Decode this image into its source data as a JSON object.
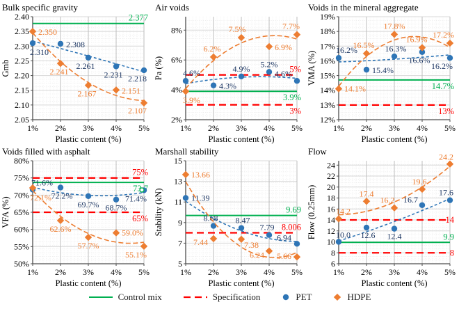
{
  "colors": {
    "control_mix": "#00B050",
    "specification": "#FF0000",
    "pet": "#2E75B6",
    "pet_label": "#1F3864",
    "hdpe": "#ED7D31",
    "axis": "#4D4D4D",
    "grid_major_h": "#D8D8D8",
    "grid_major_v": "#BDBDBD",
    "grid_minor": "#E4E4E4",
    "text": "#000000"
  },
  "legend": {
    "items": [
      {
        "id": "control-mix",
        "label": "Control mix",
        "swatch": "line-solid",
        "color_key": "control_mix"
      },
      {
        "id": "specification",
        "label": "Specification",
        "swatch": "line-dashed",
        "color_key": "specification"
      },
      {
        "id": "pet",
        "label": "PET",
        "swatch": "circle",
        "color_key": "pet"
      },
      {
        "id": "hdpe",
        "label": "HDPE",
        "swatch": "diamond",
        "color_key": "hdpe"
      }
    ]
  },
  "chart_data": [
    {
      "type": "line",
      "title": "Bulk specific gravity",
      "ylabel": "Gmb",
      "xlabel": "Plastic content (%)",
      "categories": [
        "1%",
        "2%",
        "3%",
        "4%",
        "5%"
      ],
      "x": [
        1,
        2,
        3,
        4,
        5
      ],
      "ylim": [
        2.05,
        2.4
      ],
      "yticks": [
        2.05,
        2.1,
        2.15,
        2.2,
        2.25,
        2.3,
        2.35,
        2.4
      ],
      "ytick_labels": [
        "2.05",
        "2.10",
        "2.15",
        "2.20",
        "2.25",
        "2.30",
        "2.35",
        "2.40"
      ],
      "series": [
        {
          "name": "PET",
          "marker": "circle",
          "color_key": "pet",
          "label_color_key": "pet_label",
          "values": [
            2.31,
            2.308,
            2.261,
            2.231,
            2.218
          ],
          "labels": [
            "2.310",
            "2.308",
            "2.261",
            "2.231",
            "2.218"
          ],
          "label_offsets": [
            [
              -4,
              17,
              "s"
            ],
            [
              8,
              5,
              "s"
            ],
            [
              -4,
              16,
              "m"
            ],
            [
              -4,
              16,
              "m"
            ],
            [
              4,
              16,
              "e"
            ]
          ]
        },
        {
          "name": "HDPE",
          "marker": "diamond",
          "color_key": "hdpe",
          "label_color_key": "hdpe",
          "values": [
            2.35,
            2.241,
            2.167,
            2.151,
            2.107
          ],
          "labels": [
            "2.350",
            "2.241",
            "2.167",
            "2.151",
            "2.107"
          ],
          "label_offsets": [
            [
              8,
              5,
              "s"
            ],
            [
              -2,
              16,
              "m"
            ],
            [
              -2,
              16,
              "m"
            ],
            [
              8,
              5,
              "s"
            ],
            [
              4,
              15,
              "e"
            ]
          ]
        }
      ],
      "ref_lines": [
        {
          "name": "Control mix",
          "kind": "control",
          "value": 2.377,
          "label": "2.377",
          "label_side": "above"
        }
      ]
    },
    {
      "type": "line",
      "title": "Air voids",
      "ylabel": "Pa (%)",
      "xlabel": "Plastic content (%)",
      "categories": [
        "1%",
        "2%",
        "3%",
        "4%",
        "5%"
      ],
      "x": [
        1,
        2,
        3,
        4,
        5
      ],
      "ylim": [
        2,
        8.9
      ],
      "yticks": [
        2,
        4,
        6,
        8
      ],
      "ytick_labels": [
        "2%",
        "4%",
        "6%",
        "8%"
      ],
      "series": [
        {
          "name": "PET",
          "marker": "circle",
          "color_key": "pet",
          "label_color_key": "pet_label",
          "values": [
            4.6,
            4.3,
            4.9,
            5.2,
            4.6
          ],
          "labels": [
            "4.6%",
            "4.3%",
            "4.9%",
            "5.2%",
            "4.6%"
          ],
          "label_offsets": [
            [
              -4,
              -7,
              "s"
            ],
            [
              8,
              5,
              "s"
            ],
            [
              0,
              -7,
              "m"
            ],
            [
              0,
              -7,
              "m"
            ],
            [
              -7,
              -6,
              "e"
            ]
          ]
        },
        {
          "name": "HDPE",
          "marker": "diamond",
          "color_key": "hdpe",
          "label_color_key": "hdpe",
          "values": [
            3.9,
            6.2,
            7.5,
            6.9,
            7.7
          ],
          "labels": [
            "3.9%",
            "6.2%",
            "7.5%",
            "6.9%",
            "7.7%"
          ],
          "label_offsets": [
            [
              -4,
              17,
              "s"
            ],
            [
              -2,
              -8,
              "m"
            ],
            [
              -6,
              -8,
              "m"
            ],
            [
              8,
              5,
              "s"
            ],
            [
              4,
              -8,
              "e"
            ]
          ]
        }
      ],
      "ref_lines": [
        {
          "name": "Specification",
          "kind": "spec",
          "value": 5,
          "label": "5%",
          "label_side": "above"
        },
        {
          "name": "Control mix",
          "kind": "control",
          "value": 3.9,
          "label": "3.9%",
          "label_side": "below"
        },
        {
          "name": "Specification",
          "kind": "spec",
          "value": 3,
          "label": "3%",
          "label_side": "below"
        }
      ]
    },
    {
      "type": "line",
      "title": "Voids in the mineral aggregate",
      "ylabel": "VMA (%)",
      "xlabel": "Plastic content (%)",
      "categories": [
        "1%",
        "2%",
        "3%",
        "4%",
        "5%"
      ],
      "x": [
        1,
        2,
        3,
        4,
        5
      ],
      "ylim": [
        12,
        19
      ],
      "yticks": [
        12,
        13,
        14,
        15,
        16,
        17,
        18,
        19
      ],
      "ytick_labels": [
        "12%",
        "13%",
        "14%",
        "15%",
        "16%",
        "17%",
        "18%",
        "19%"
      ],
      "series": [
        {
          "name": "PET",
          "marker": "circle",
          "color_key": "pet",
          "label_color_key": "pet_label",
          "values": [
            16.2,
            15.4,
            16.3,
            16.6,
            16.2
          ],
          "labels": [
            "16.2%",
            "15.4%",
            "16.3%",
            "16.6%",
            "16.2%"
          ],
          "label_offsets": [
            [
              -4,
              -7,
              "s"
            ],
            [
              8,
              5,
              "s"
            ],
            [
              2,
              -7,
              "m"
            ],
            [
              -4,
              16,
              "m"
            ],
            [
              4,
              16,
              "e"
            ]
          ]
        },
        {
          "name": "HDPE",
          "marker": "diamond",
          "color_key": "hdpe",
          "label_color_key": "hdpe",
          "values": [
            14.1,
            16.5,
            17.8,
            16.9,
            17.2
          ],
          "labels": [
            "14.1%",
            "16.5%",
            "17.8%",
            "16.9%",
            "17.2%"
          ],
          "label_offsets": [
            [
              8,
              4,
              "s"
            ],
            [
              -4,
              -8,
              "m"
            ],
            [
              0,
              -8,
              "m"
            ],
            [
              -8,
              -8,
              "m"
            ],
            [
              6,
              -8,
              "e"
            ]
          ]
        }
      ],
      "ref_lines": [
        {
          "name": "Control mix",
          "kind": "control",
          "value": 14.7,
          "label": "14.7%",
          "label_side": "below"
        },
        {
          "name": "Specification",
          "kind": "spec",
          "value": 13,
          "label": "13%",
          "label_side": "below"
        }
      ]
    },
    {
      "type": "line",
      "title": "Voids filled with asphalt",
      "ylabel": "VFA (%)",
      "xlabel": "Plastic content (%)",
      "categories": [
        "1%",
        "2%",
        "3%",
        "4%",
        "5%"
      ],
      "x": [
        1,
        2,
        3,
        4,
        5
      ],
      "ylim": [
        50,
        80
      ],
      "yticks": [
        50,
        55,
        60,
        65,
        70,
        75,
        80
      ],
      "ytick_labels": [
        "50%",
        "55%",
        "60%",
        "65%",
        "70%",
        "75%",
        "80%"
      ],
      "series": [
        {
          "name": "PET",
          "marker": "circle",
          "color_key": "pet",
          "label_color_key": "pet_label",
          "values": [
            71.6,
            72.2,
            69.7,
            68.7,
            71.4
          ],
          "labels": [
            "71.6%",
            "72.2%",
            "69.7%",
            "68.7%",
            "71.4%"
          ],
          "label_offsets": [
            [
              -2,
              -6,
              "s"
            ],
            [
              2,
              16,
              "m"
            ],
            [
              0,
              16,
              "m"
            ],
            [
              0,
              16,
              "m"
            ],
            [
              4,
              16,
              "e"
            ]
          ]
        },
        {
          "name": "HDPE",
          "marker": "diamond",
          "color_key": "hdpe",
          "label_color_key": "hdpe",
          "values": [
            72.1,
            62.6,
            57.7,
            59.0,
            55.1
          ],
          "labels": [
            "72.1%",
            "62.6%",
            "57.7%",
            "59.0%",
            "55.1%"
          ],
          "label_offsets": [
            [
              -4,
              18,
              "s"
            ],
            [
              0,
              16,
              "m"
            ],
            [
              0,
              16,
              "m"
            ],
            [
              8,
              4,
              "s"
            ],
            [
              4,
              16,
              "e"
            ]
          ]
        }
      ],
      "ref_lines": [
        {
          "name": "Specification",
          "kind": "spec",
          "value": 75,
          "label": "75%",
          "label_side": "above"
        },
        {
          "name": "Control mix",
          "kind": "control",
          "value": 73.7,
          "label": "73.7",
          "label_side": "below"
        },
        {
          "name": "Specification",
          "kind": "spec",
          "value": 65,
          "label": "65%",
          "label_side": "below"
        }
      ],
      "end_marker_value": 71.5
    },
    {
      "type": "line",
      "title": "Marshall stability",
      "ylabel": "Stability (kN)",
      "xlabel": "Plastic content (%)",
      "categories": [
        "1%",
        "2%",
        "3%",
        "4%",
        "5%"
      ],
      "x": [
        1,
        2,
        3,
        4,
        5
      ],
      "ylim": [
        5,
        15
      ],
      "yticks": [
        5,
        7,
        9,
        11,
        13,
        15
      ],
      "ytick_labels": [
        "5",
        "7",
        "9",
        "11",
        "13",
        "15"
      ],
      "series": [
        {
          "name": "PET",
          "marker": "circle",
          "color_key": "pet",
          "label_color_key": "pet_label",
          "values": [
            11.39,
            8.68,
            8.47,
            7.79,
            6.94
          ],
          "labels": [
            "11.39",
            "8.68",
            "8.47",
            "7.79",
            "6.94"
          ],
          "label_offsets": [
            [
              8,
              4,
              "s"
            ],
            [
              -4,
              -7,
              "m"
            ],
            [
              2,
              -7,
              "m"
            ],
            [
              -3,
              -7,
              "m"
            ],
            [
              -8,
              -5,
              "e"
            ]
          ]
        },
        {
          "name": "HDPE",
          "marker": "diamond",
          "color_key": "hdpe",
          "label_color_key": "hdpe",
          "values": [
            13.66,
            7.44,
            7.38,
            6.24,
            5.66
          ],
          "labels": [
            "13.66",
            "7.44",
            "7.38",
            "6.24",
            "5.66"
          ],
          "label_offsets": [
            [
              8,
              4,
              "s"
            ],
            [
              -8,
              9,
              "e"
            ],
            [
              4,
              12,
              "s"
            ],
            [
              -7,
              10,
              "e"
            ],
            [
              -8,
              3,
              "e"
            ]
          ]
        }
      ],
      "ref_lines": [
        {
          "name": "Control mix",
          "kind": "control",
          "value": 9.69,
          "label": "9.69",
          "label_side": "above"
        },
        {
          "name": "Specification",
          "kind": "spec",
          "value": 8.006,
          "label": "8.006",
          "label_side": "above"
        }
      ]
    },
    {
      "type": "line",
      "title": "Flow",
      "ylabel": "Flow (0.25mm)",
      "xlabel": "Plastic content (%)",
      "categories": [
        "1%",
        "2%",
        "3%",
        "4%",
        "5%"
      ],
      "x": [
        1,
        2,
        3,
        4,
        5
      ],
      "ylim": [
        6,
        24.8
      ],
      "yticks": [
        6,
        8,
        10,
        12,
        14,
        16,
        18,
        20,
        22,
        24
      ],
      "ytick_labels": [
        "6",
        "8",
        "10",
        "12",
        "14",
        "16",
        "18",
        "20",
        "22",
        "24"
      ],
      "series": [
        {
          "name": "PET",
          "marker": "circle",
          "color_key": "pet",
          "label_color_key": "pet_label",
          "values": [
            10.0,
            12.6,
            12.4,
            16.7,
            17.6
          ],
          "labels": [
            "10.0",
            "12.6",
            "12.4",
            "16.7",
            "17.6"
          ],
          "label_offsets": [
            [
              -4,
              -6,
              "s"
            ],
            [
              2,
              15,
              "m"
            ],
            [
              0,
              15,
              "m"
            ],
            [
              -6,
              -4,
              "e"
            ],
            [
              5,
              -7,
              "e"
            ]
          ]
        },
        {
          "name": "HDPE",
          "marker": "diamond",
          "color_key": "hdpe",
          "label_color_key": "hdpe",
          "values": [
            14.2,
            17.4,
            16.2,
            19.6,
            24.2
          ],
          "labels": [
            "14.2",
            "17.4",
            "16.2",
            "19.6",
            "24.2"
          ],
          "label_offsets": [
            [
              -4,
              -7,
              "s"
            ],
            [
              0,
              -7,
              "m"
            ],
            [
              -10,
              -7,
              "m"
            ],
            [
              -4,
              -7,
              "m"
            ],
            [
              5,
              -6,
              "e"
            ]
          ]
        }
      ],
      "ref_lines": [
        {
          "name": "Specification",
          "kind": "spec",
          "value": 14,
          "label": "14",
          "label_side": "middle"
        },
        {
          "name": "Control mix",
          "kind": "control",
          "value": 9.9,
          "label": "9.9",
          "label_side": "above"
        },
        {
          "name": "Specification",
          "kind": "spec",
          "value": 8,
          "label": "8",
          "label_side": "middle"
        }
      ]
    }
  ]
}
